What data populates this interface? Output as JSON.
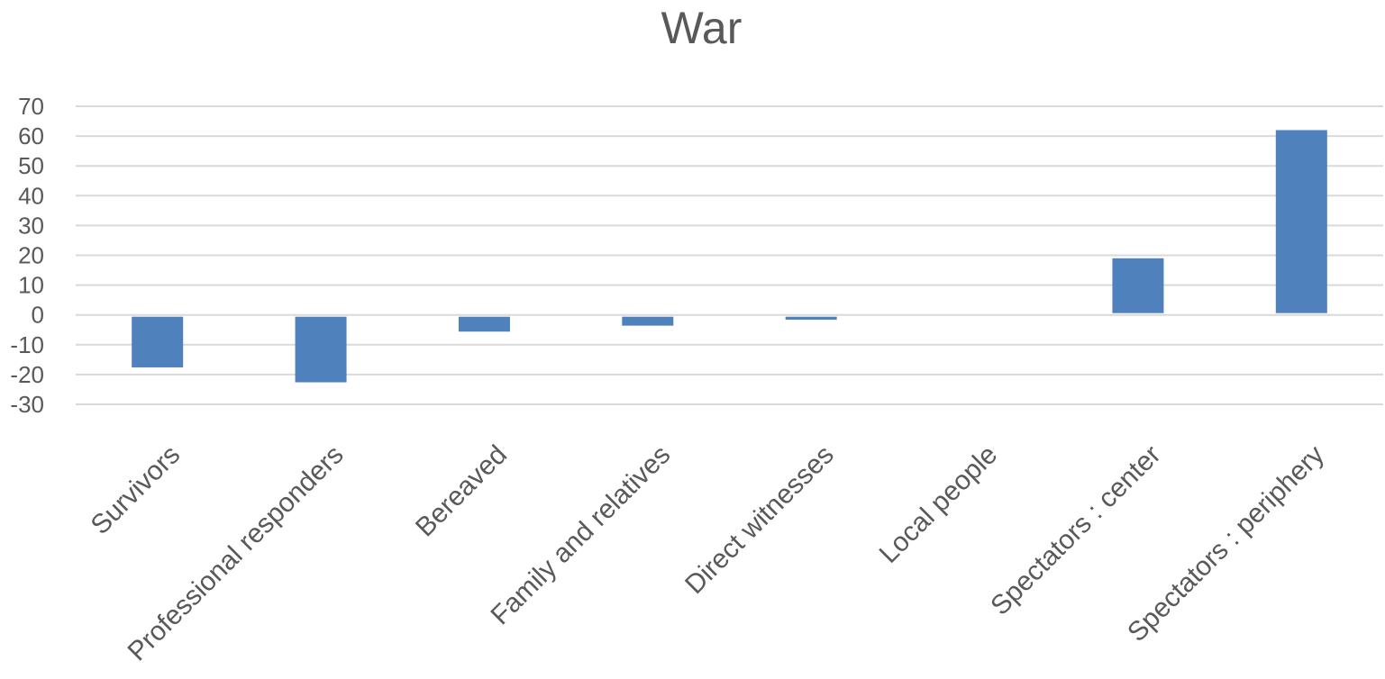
{
  "chart_data": {
    "type": "bar",
    "title": "War",
    "categories": [
      "Survivors",
      "Professional responders",
      "Bereaved",
      "Family and relatives",
      "Direct witnesses",
      "Local people",
      "Spectators : center",
      "Spectators : periphery"
    ],
    "values": [
      -17,
      -22,
      -5,
      -3,
      -1,
      0,
      19,
      62
    ],
    "ylim": [
      -30,
      70
    ],
    "yticks": [
      70,
      60,
      50,
      40,
      30,
      20,
      10,
      0,
      -10,
      -20,
      -30
    ],
    "xlabel": "",
    "ylabel": "",
    "grid": true,
    "legend": "none",
    "bar_color": "#4f81bd",
    "grid_color": "#d9d9d9",
    "text_color": "#595959"
  }
}
